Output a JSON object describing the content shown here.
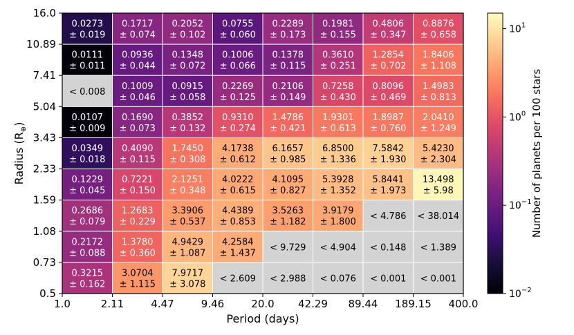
{
  "chart_data": {
    "type": "heatmap",
    "xlabel": "Period (days)",
    "ylabel": "Radius (R",
    "ylabel_sub": "⊕",
    "ylabel_close": ")",
    "x_edges": [
      "1.0",
      "2.11",
      "4.47",
      "9.46",
      "20.0",
      "42.29",
      "89.44",
      "189.15",
      "400.0"
    ],
    "y_edges": [
      "0.5",
      "0.73",
      "1.08",
      "1.59",
      "2.33",
      "3.43",
      "5.04",
      "7.41",
      "10.89",
      "16.0"
    ],
    "colorbar": {
      "label": "Number of planets per 100 stars",
      "scale": "log",
      "range": [
        0.01,
        15
      ],
      "colormap": "magma",
      "ticks": [
        {
          "value": 0.01,
          "base": "10",
          "exp": "−2"
        },
        {
          "value": 0.1,
          "base": "10",
          "exp": "−1"
        },
        {
          "value": 1,
          "base": "10",
          "exp": "0"
        },
        {
          "value": 10,
          "base": "10",
          "exp": "1"
        }
      ]
    },
    "upper_limit_color": "#d3d3d3",
    "rows_top_to_bottom": [
      [
        {
          "v": "0.0273",
          "e": "± 0.019"
        },
        {
          "v": "0.1717",
          "e": "± 0.074"
        },
        {
          "v": "0.2052",
          "e": "± 0.102"
        },
        {
          "v": "0.0755",
          "e": "± 0.060"
        },
        {
          "v": "0.2289",
          "e": "± 0.173"
        },
        {
          "v": "0.1981",
          "e": "± 0.155"
        },
        {
          "v": "0.4806",
          "e": "± 0.347"
        },
        {
          "v": "0.8876",
          "e": "± 0.658"
        }
      ],
      [
        {
          "v": "0.0111",
          "e": "± 0.011"
        },
        {
          "v": "0.0936",
          "e": "± 0.044"
        },
        {
          "v": "0.1348",
          "e": "± 0.072"
        },
        {
          "v": "0.1006",
          "e": "± 0.066"
        },
        {
          "v": "0.1378",
          "e": "± 0.115"
        },
        {
          "v": "0.3610",
          "e": "± 0.251"
        },
        {
          "v": "1.2854",
          "e": "± 0.702"
        },
        {
          "v": "1.8406",
          "e": "± 1.108"
        }
      ],
      [
        {
          "limit": "< 0.008"
        },
        {
          "v": "0.1009",
          "e": "± 0.046"
        },
        {
          "v": "0.0915",
          "e": "± 0.058"
        },
        {
          "v": "0.2269",
          "e": "± 0.125"
        },
        {
          "v": "0.2106",
          "e": "± 0.149"
        },
        {
          "v": "0.7258",
          "e": "± 0.430"
        },
        {
          "v": "0.8096",
          "e": "± 0.469"
        },
        {
          "v": "1.4983",
          "e": "± 0.813"
        }
      ],
      [
        {
          "v": "0.0107",
          "e": "± 0.009"
        },
        {
          "v": "0.1690",
          "e": "± 0.073"
        },
        {
          "v": "0.3852",
          "e": "± 0.132"
        },
        {
          "v": "0.9310",
          "e": "± 0.274"
        },
        {
          "v": "1.4786",
          "e": "± 0.421"
        },
        {
          "v": "1.9301",
          "e": "± 0.613"
        },
        {
          "v": "1.8987",
          "e": "± 0.760"
        },
        {
          "v": "2.0410",
          "e": "± 1.249"
        }
      ],
      [
        {
          "v": "0.0349",
          "e": "± 0.018"
        },
        {
          "v": "0.4090",
          "e": "± 0.115"
        },
        {
          "v": "1.7450",
          "e": "± 0.308"
        },
        {
          "v": "4.1738",
          "e": "± 0.612"
        },
        {
          "v": "6.1657",
          "e": "± 0.985"
        },
        {
          "v": "6.8500",
          "e": "± 1.336"
        },
        {
          "v": "7.5842",
          "e": "± 1.930"
        },
        {
          "v": "5.4230",
          "e": "± 2.304"
        }
      ],
      [
        {
          "v": "0.1229",
          "e": "± 0.045"
        },
        {
          "v": "0.7221",
          "e": "± 0.150"
        },
        {
          "v": "2.1251",
          "e": "± 0.348"
        },
        {
          "v": "4.0222",
          "e": "± 0.615"
        },
        {
          "v": "4.1095",
          "e": "± 0.827"
        },
        {
          "v": "5.3928",
          "e": "± 1.352"
        },
        {
          "v": "5.8441",
          "e": "± 1.973"
        },
        {
          "v": "13.498",
          "e": "± 5.98"
        }
      ],
      [
        {
          "v": "0.2686",
          "e": "± 0.079"
        },
        {
          "v": "1.2683",
          "e": "± 0.229"
        },
        {
          "v": "3.3906",
          "e": "± 0.537"
        },
        {
          "v": "4.4389",
          "e": "± 0.853"
        },
        {
          "v": "3.5263",
          "e": "± 1.182"
        },
        {
          "v": "3.9179",
          "e": "± 1.800"
        },
        {
          "limit": "< 4.786"
        },
        {
          "limit": "< 38.014"
        }
      ],
      [
        {
          "v": "0.2172",
          "e": "± 0.088"
        },
        {
          "v": "1.3780",
          "e": "± 0.360"
        },
        {
          "v": "4.9429",
          "e": "± 1.087"
        },
        {
          "v": "4.2584",
          "e": "± 1.437"
        },
        {
          "limit": "< 9.729"
        },
        {
          "limit": "< 4.904"
        },
        {
          "limit": "< 0.148"
        },
        {
          "limit": "< 1.389"
        }
      ],
      [
        {
          "v": "0.3215",
          "e": "± 0.162"
        },
        {
          "v": "3.0704",
          "e": "± 1.115"
        },
        {
          "v": "7.9717",
          "e": "± 3.078"
        },
        {
          "limit": "< 2.609"
        },
        {
          "limit": "< 2.988"
        },
        {
          "limit": "< 0.076"
        },
        {
          "limit": "< 0.001"
        },
        {
          "limit": "< 0.001"
        }
      ]
    ]
  }
}
